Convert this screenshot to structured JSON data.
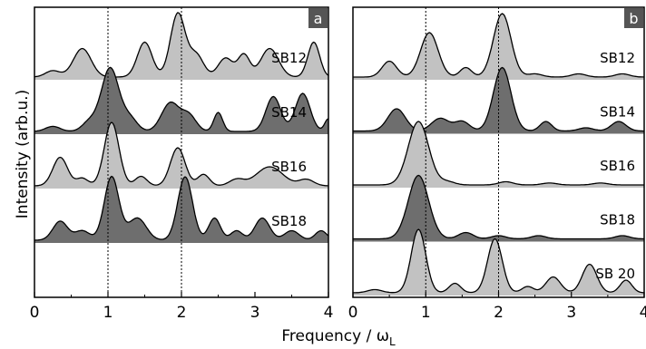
{
  "chart_data": [
    {
      "type": "area",
      "panel_label": "a",
      "xlim": [
        0,
        4
      ],
      "x_ticks": [
        "0",
        "1",
        "2",
        "3",
        "4"
      ],
      "reference_lines_x": [
        1,
        2
      ],
      "series": [
        {
          "name": "SB12",
          "fill": "#c2c2c2",
          "peaks": [
            [
              0.25,
              0.1,
              0.1
            ],
            [
              0.65,
              0.45,
              0.12
            ],
            [
              1.5,
              0.55,
              0.1
            ],
            [
              1.95,
              1.0,
              0.1
            ],
            [
              2.2,
              0.35,
              0.1
            ],
            [
              2.6,
              0.3,
              0.1
            ],
            [
              2.85,
              0.35,
              0.08
            ],
            [
              3.2,
              0.45,
              0.12
            ],
            [
              3.8,
              0.55,
              0.08
            ]
          ]
        },
        {
          "name": "SB14",
          "fill": "#6e6e6e",
          "peaks": [
            [
              0.25,
              0.08,
              0.1
            ],
            [
              0.75,
              0.15,
              0.1
            ],
            [
              1.03,
              1.0,
              0.12
            ],
            [
              1.3,
              0.2,
              0.1
            ],
            [
              1.85,
              0.45,
              0.12
            ],
            [
              2.1,
              0.25,
              0.1
            ],
            [
              2.5,
              0.3,
              0.06
            ],
            [
              3.25,
              0.55,
              0.1
            ],
            [
              3.65,
              0.6,
              0.1
            ],
            [
              4.0,
              0.2,
              0.05
            ]
          ]
        },
        {
          "name": "SB16",
          "fill": "#c2c2c2",
          "peaks": [
            [
              0.35,
              0.45,
              0.1
            ],
            [
              0.65,
              0.12,
              0.08
            ],
            [
              1.05,
              1.0,
              0.1
            ],
            [
              1.45,
              0.15,
              0.08
            ],
            [
              1.95,
              0.6,
              0.1
            ],
            [
              2.3,
              0.18,
              0.08
            ],
            [
              2.75,
              0.1,
              0.1
            ],
            [
              3.2,
              0.3,
              0.18
            ],
            [
              3.7,
              0.1,
              0.1
            ]
          ]
        },
        {
          "name": "SB18",
          "fill": "#6e6e6e",
          "peaks": [
            [
              0.35,
              0.3,
              0.1
            ],
            [
              0.65,
              0.15,
              0.1
            ],
            [
              1.05,
              1.0,
              0.1
            ],
            [
              1.4,
              0.35,
              0.12
            ],
            [
              2.05,
              1.0,
              0.1
            ],
            [
              2.45,
              0.35,
              0.08
            ],
            [
              2.75,
              0.15,
              0.08
            ],
            [
              3.1,
              0.35,
              0.1
            ],
            [
              3.5,
              0.15,
              0.1
            ],
            [
              3.9,
              0.15,
              0.08
            ]
          ]
        }
      ]
    },
    {
      "type": "area",
      "panel_label": "b",
      "xlim": [
        0,
        4
      ],
      "x_ticks": [
        "0",
        "1",
        "2",
        "3",
        "4"
      ],
      "reference_lines_x": [
        1,
        2
      ],
      "series": [
        {
          "name": "SB12",
          "fill": "#c2c2c2",
          "peaks": [
            [
              0.5,
              0.25,
              0.1
            ],
            [
              1.05,
              0.7,
              0.12
            ],
            [
              1.55,
              0.15,
              0.08
            ],
            [
              2.05,
              1.0,
              0.12
            ],
            [
              2.5,
              0.05,
              0.1
            ],
            [
              3.1,
              0.05,
              0.1
            ],
            [
              3.7,
              0.05,
              0.1
            ]
          ]
        },
        {
          "name": "SB14",
          "fill": "#6e6e6e",
          "peaks": [
            [
              0.6,
              0.35,
              0.12
            ],
            [
              1.2,
              0.2,
              0.12
            ],
            [
              1.5,
              0.15,
              0.1
            ],
            [
              2.05,
              1.0,
              0.12
            ],
            [
              2.65,
              0.15,
              0.08
            ],
            [
              3.2,
              0.05,
              0.1
            ],
            [
              3.65,
              0.15,
              0.1
            ]
          ]
        },
        {
          "name": "SB16",
          "fill": "#c2c2c2",
          "peaks": [
            [
              0.9,
              1.0,
              0.14
            ],
            [
              1.3,
              0.05,
              0.1
            ],
            [
              2.1,
              0.05,
              0.1
            ],
            [
              2.7,
              0.03,
              0.1
            ],
            [
              3.4,
              0.03,
              0.1
            ]
          ]
        },
        {
          "name": "SB18",
          "fill": "#6e6e6e",
          "peaks": [
            [
              0.9,
              1.0,
              0.14
            ],
            [
              1.55,
              0.1,
              0.1
            ],
            [
              2.0,
              0.05,
              0.1
            ],
            [
              2.55,
              0.05,
              0.1
            ],
            [
              3.7,
              0.05,
              0.1
            ]
          ]
        },
        {
          "name": "SB 20",
          "fill": "#c2c2c2",
          "peaks": [
            [
              0.3,
              0.05,
              0.1
            ],
            [
              0.9,
              1.0,
              0.1
            ],
            [
              1.4,
              0.15,
              0.08
            ],
            [
              1.95,
              0.85,
              0.1
            ],
            [
              2.4,
              0.1,
              0.08
            ],
            [
              2.75,
              0.25,
              0.1
            ],
            [
              3.25,
              0.45,
              0.1
            ],
            [
              3.75,
              0.2,
              0.08
            ]
          ]
        }
      ]
    }
  ],
  "axes": {
    "xlabel": "Frequency / ω",
    "xlabel_sub": "L",
    "ylabel": "Intensity (arb.u.)"
  }
}
